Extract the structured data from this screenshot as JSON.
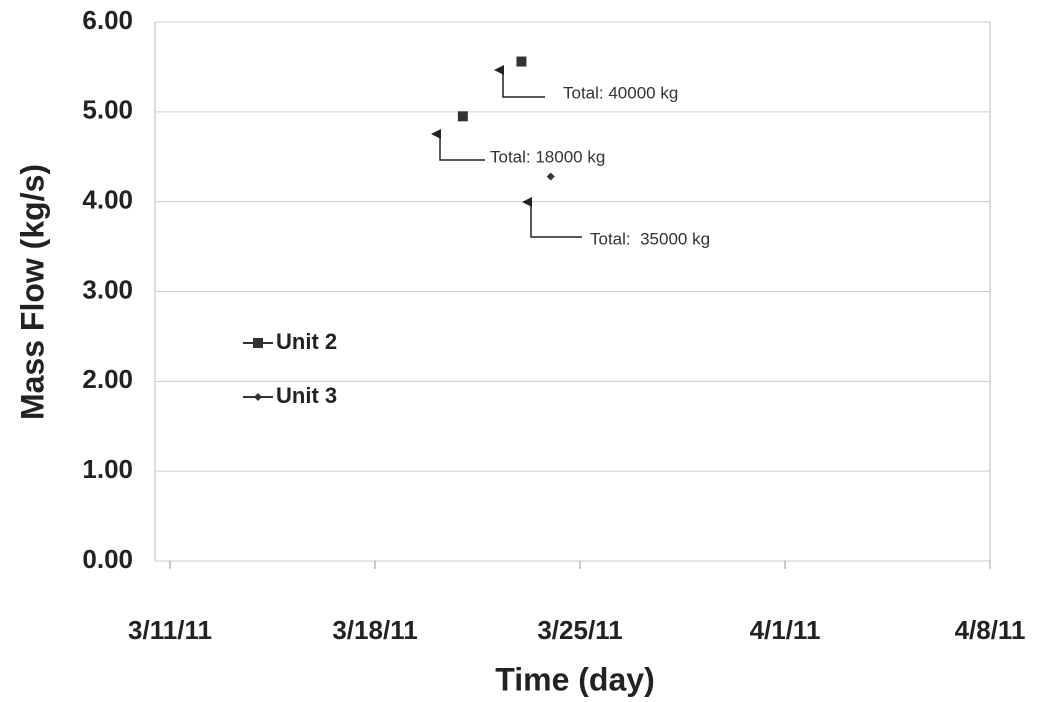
{
  "chart_data": {
    "type": "scatter",
    "x_label": "Time (day)",
    "y_label": "Mass Flow (kg/s)",
    "xlim": [
      "3/11/11",
      "4/8/11"
    ],
    "xticks": [
      "3/11/11",
      "3/18/11",
      "3/25/11",
      "4/1/11",
      "4/8/11"
    ],
    "ylim": [
      0,
      6
    ],
    "yticks": [
      {
        "value": 0,
        "label": "0.00"
      },
      {
        "value": 1,
        "label": "1.00"
      },
      {
        "value": 2,
        "label": "2.00"
      },
      {
        "value": 3,
        "label": "3.00"
      },
      {
        "value": 4,
        "label": "4.00"
      },
      {
        "value": 5,
        "label": "5.00"
      },
      {
        "value": 6,
        "label": "6.00"
      }
    ],
    "grid": true,
    "legend": "left",
    "series": [
      {
        "name": "Unit 2",
        "color": "#333333",
        "marker": "square",
        "x": [
          "3/21/11",
          "3/23/11"
        ],
        "values": [
          4.95,
          5.56
        ]
      },
      {
        "name": "Unit 3",
        "color": "#333333",
        "marker": "diamond",
        "x": [
          "3/24/11"
        ],
        "values": [
          4.28
        ]
      }
    ],
    "annotations": [
      "Total: 40000 kg",
      "Total: 18000 kg",
      "Total:  35000 kg"
    ]
  }
}
